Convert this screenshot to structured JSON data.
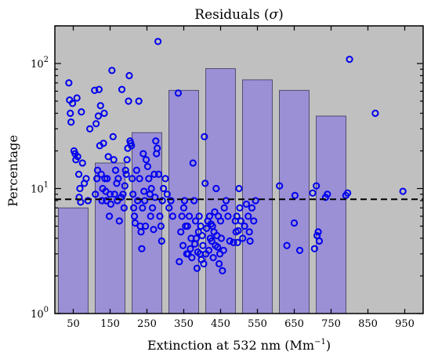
{
  "chart_data": {
    "type": "bar",
    "title_text": "Residuals (",
    "title_symbol": "σ",
    "title_close": ")",
    "xlabel_text": "Extinction at 532 nm (Mm",
    "xlabel_exp": "−1",
    "xlabel_close": ")",
    "ylabel": "Percentage",
    "yscale": "log",
    "ylim": [
      1,
      200
    ],
    "xlim": [
      0,
      1000
    ],
    "x_ticks": [
      50,
      150,
      250,
      350,
      450,
      550,
      650,
      750,
      850,
      950
    ],
    "x_tick_labels": [
      "50",
      "150",
      "250",
      "350",
      "450",
      "550",
      "650",
      "750",
      "850",
      "950"
    ],
    "y_ticks": [
      {
        "value": 1,
        "base": "10",
        "exp": "0"
      },
      {
        "value": 10,
        "base": "10",
        "exp": "1"
      },
      {
        "value": 100,
        "base": "10",
        "exp": "2"
      }
    ],
    "background_color": "#c0c0c0",
    "bar_color": "#9b8fd6",
    "marker_color": "#0000ee",
    "reference_line": 8.2,
    "bars": [
      {
        "x": 50,
        "value": 7.0
      },
      {
        "x": 150,
        "value": 16.0
      },
      {
        "x": 250,
        "value": 28.0
      },
      {
        "x": 350,
        "value": 61.0
      },
      {
        "x": 450,
        "value": 91.0
      },
      {
        "x": 550,
        "value": 74.0
      },
      {
        "x": 650,
        "value": 61.0
      },
      {
        "x": 750,
        "value": 38.0
      }
    ],
    "points": [
      [
        38,
        70
      ],
      [
        40,
        51
      ],
      [
        42,
        40
      ],
      [
        44,
        34
      ],
      [
        48,
        48
      ],
      [
        52,
        20
      ],
      [
        55,
        19
      ],
      [
        57,
        17
      ],
      [
        60,
        53
      ],
      [
        62,
        18
      ],
      [
        65,
        13
      ],
      [
        66,
        8.5
      ],
      [
        68,
        10
      ],
      [
        70,
        7.8
      ],
      [
        72,
        41
      ],
      [
        75,
        16
      ],
      [
        80,
        11
      ],
      [
        85,
        12
      ],
      [
        90,
        8
      ],
      [
        95,
        30
      ],
      [
        108,
        61
      ],
      [
        110,
        9
      ],
      [
        112,
        33
      ],
      [
        114,
        12
      ],
      [
        116,
        14
      ],
      [
        118,
        38
      ],
      [
        120,
        62
      ],
      [
        122,
        22
      ],
      [
        124,
        46
      ],
      [
        126,
        13
      ],
      [
        128,
        8
      ],
      [
        130,
        10
      ],
      [
        132,
        23
      ],
      [
        134,
        40
      ],
      [
        136,
        12
      ],
      [
        138,
        9.5
      ],
      [
        140,
        8
      ],
      [
        142,
        12
      ],
      [
        145,
        18
      ],
      [
        148,
        6
      ],
      [
        150,
        9
      ],
      [
        152,
        7.5
      ],
      [
        155,
        88
      ],
      [
        158,
        26
      ],
      [
        160,
        17
      ],
      [
        162,
        9
      ],
      [
        165,
        14
      ],
      [
        168,
        11
      ],
      [
        170,
        8
      ],
      [
        172,
        12
      ],
      [
        175,
        5.5
      ],
      [
        180,
        8.5
      ],
      [
        182,
        62
      ],
      [
        185,
        9
      ],
      [
        188,
        7
      ],
      [
        190,
        10.5
      ],
      [
        192,
        14
      ],
      [
        194,
        13
      ],
      [
        196,
        17
      ],
      [
        198,
        21
      ],
      [
        200,
        50
      ],
      [
        202,
        80
      ],
      [
        204,
        24
      ],
      [
        206,
        23
      ],
      [
        208,
        22
      ],
      [
        210,
        12
      ],
      [
        212,
        9
      ],
      [
        214,
        7
      ],
      [
        216,
        6
      ],
      [
        218,
        5.3
      ],
      [
        222,
        14
      ],
      [
        225,
        8
      ],
      [
        228,
        50
      ],
      [
        230,
        12
      ],
      [
        232,
        5
      ],
      [
        234,
        4.5
      ],
      [
        236,
        3.3
      ],
      [
        238,
        7
      ],
      [
        240,
        19
      ],
      [
        242,
        9.5
      ],
      [
        244,
        8
      ],
      [
        246,
        5
      ],
      [
        248,
        17
      ],
      [
        252,
        15
      ],
      [
        255,
        12
      ],
      [
        258,
        9
      ],
      [
        260,
        6
      ],
      [
        262,
        10
      ],
      [
        265,
        7
      ],
      [
        268,
        4.7
      ],
      [
        270,
        13
      ],
      [
        272,
        8.5
      ],
      [
        274,
        24
      ],
      [
        276,
        19
      ],
      [
        278,
        21
      ],
      [
        280,
        150
      ],
      [
        282,
        13
      ],
      [
        285,
        6
      ],
      [
        288,
        5
      ],
      [
        290,
        3.8
      ],
      [
        292,
        8
      ],
      [
        295,
        10
      ],
      [
        300,
        12
      ],
      [
        305,
        9
      ],
      [
        310,
        7
      ],
      [
        315,
        8
      ],
      [
        320,
        6
      ],
      [
        335,
        58
      ],
      [
        338,
        2.6
      ],
      [
        342,
        4.5
      ],
      [
        345,
        6
      ],
      [
        348,
        3.5
      ],
      [
        350,
        7
      ],
      [
        352,
        8
      ],
      [
        355,
        5
      ],
      [
        358,
        3
      ],
      [
        360,
        5
      ],
      [
        362,
        3
      ],
      [
        365,
        6
      ],
      [
        368,
        3.3
      ],
      [
        370,
        4
      ],
      [
        372,
        2.8
      ],
      [
        375,
        16
      ],
      [
        378,
        8
      ],
      [
        380,
        3.6
      ],
      [
        382,
        5.5
      ],
      [
        384,
        4
      ],
      [
        386,
        2.3
      ],
      [
        388,
        3.1
      ],
      [
        390,
        4.5
      ],
      [
        392,
        6
      ],
      [
        394,
        3
      ],
      [
        396,
        5
      ],
      [
        398,
        2.7
      ],
      [
        400,
        4.2
      ],
      [
        402,
        3.5
      ],
      [
        404,
        2.5
      ],
      [
        406,
        26
      ],
      [
        408,
        11
      ],
      [
        410,
        3
      ],
      [
        412,
        4.8
      ],
      [
        415,
        5.5
      ],
      [
        418,
        3.2
      ],
      [
        420,
        6
      ],
      [
        422,
        4
      ],
      [
        424,
        5.2
      ],
      [
        426,
        3.8
      ],
      [
        428,
        5
      ],
      [
        430,
        2.8
      ],
      [
        432,
        4.5
      ],
      [
        434,
        6.5
      ],
      [
        436,
        3.5
      ],
      [
        438,
        10
      ],
      [
        440,
        4.2
      ],
      [
        442,
        3.4
      ],
      [
        444,
        6
      ],
      [
        446,
        2.5
      ],
      [
        448,
        3
      ],
      [
        450,
        5.5
      ],
      [
        452,
        4
      ],
      [
        455,
        2.2
      ],
      [
        458,
        3.2
      ],
      [
        460,
        7
      ],
      [
        465,
        8
      ],
      [
        470,
        6
      ],
      [
        475,
        3.8
      ],
      [
        485,
        3.7
      ],
      [
        490,
        5.5
      ],
      [
        492,
        4.5
      ],
      [
        494,
        6
      ],
      [
        496,
        3.7
      ],
      [
        498,
        4.6
      ],
      [
        500,
        10
      ],
      [
        502,
        7
      ],
      [
        505,
        5.5
      ],
      [
        510,
        4
      ],
      [
        515,
        5
      ],
      [
        520,
        7.5
      ],
      [
        525,
        6
      ],
      [
        528,
        4.5
      ],
      [
        530,
        3.8
      ],
      [
        535,
        7
      ],
      [
        540,
        5.5
      ],
      [
        545,
        8
      ],
      [
        610,
        10.5
      ],
      [
        630,
        3.5
      ],
      [
        650,
        5.3
      ],
      [
        652,
        8.8
      ],
      [
        665,
        3.2
      ],
      [
        700,
        9.2
      ],
      [
        705,
        3.3
      ],
      [
        710,
        10.5
      ],
      [
        712,
        4.2
      ],
      [
        715,
        4.5
      ],
      [
        718,
        3.8
      ],
      [
        735,
        8.5
      ],
      [
        740,
        9
      ],
      [
        790,
        8.8
      ],
      [
        795,
        9.2
      ],
      [
        800,
        108
      ],
      [
        870,
        40
      ],
      [
        945,
        9.5
      ]
    ]
  }
}
